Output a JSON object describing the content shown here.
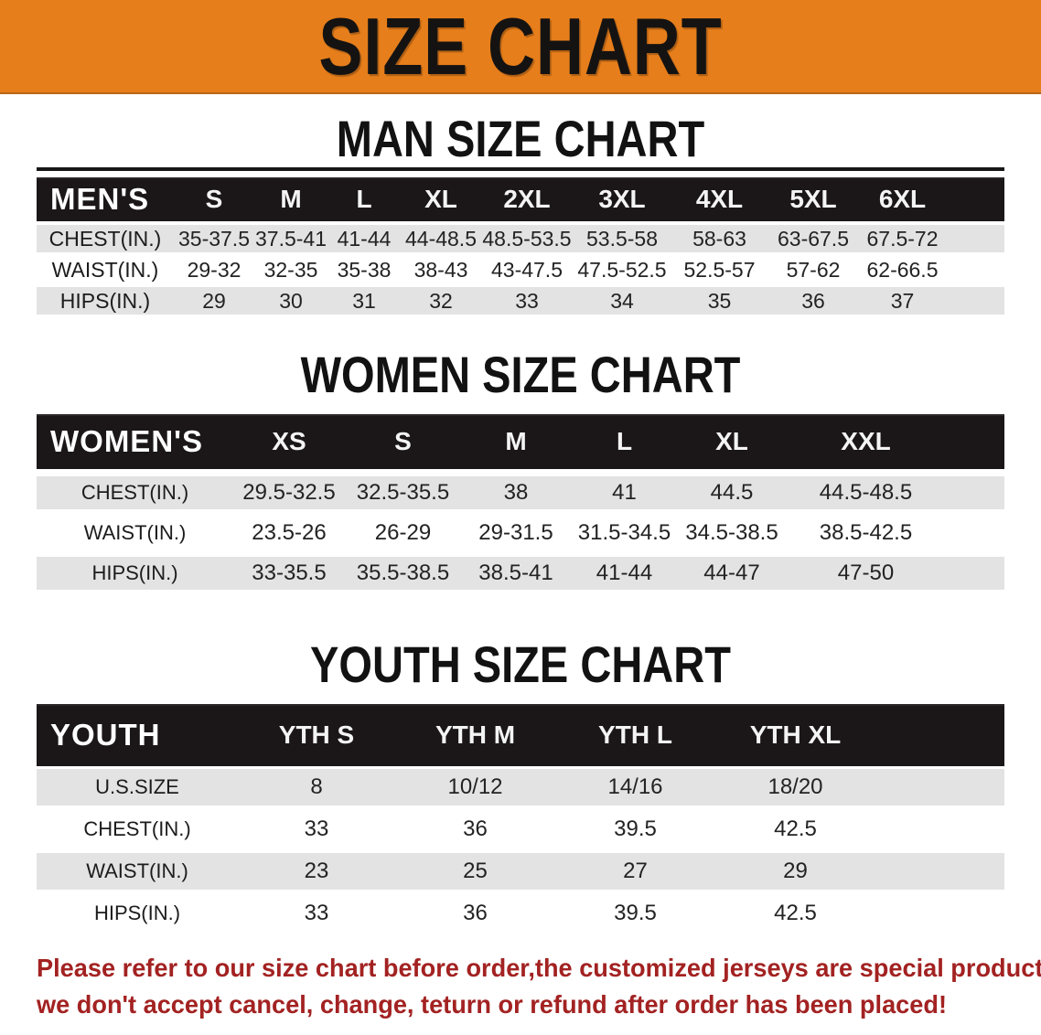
{
  "banner": {
    "title": "SIZE CHART"
  },
  "colors": {
    "banner-bg": "#e67e1b",
    "bar-bg": "#1b1718",
    "row-gray": "#e3e3e3",
    "warning-red": "#a32222"
  },
  "sections": [
    {
      "id": "men",
      "heading": "MAN SIZE CHART",
      "table": {
        "header": [
          "MEN'S",
          "S",
          "M",
          "L",
          "XL",
          "2XL",
          "3XL",
          "4XL",
          "5XL",
          "6XL"
        ],
        "rows": [
          {
            "label": "CHEST(IN.)",
            "values": [
              "35-37.5",
              "37.5-41",
              "41-44",
              "44-48.5",
              "48.5-53.5",
              "53.5-58",
              "58-63",
              "63-67.5",
              "67.5-72"
            ]
          },
          {
            "label": "WAIST(IN.)",
            "values": [
              "29-32",
              "32-35",
              "35-38",
              "38-43",
              "43-47.5",
              "47.5-52.5",
              "52.5-57",
              "57-62",
              "62-66.5"
            ]
          },
          {
            "label": "HIPS(IN.)",
            "values": [
              "29",
              "30",
              "31",
              "32",
              "33",
              "34",
              "35",
              "36",
              "37"
            ]
          }
        ]
      }
    },
    {
      "id": "women",
      "heading": "WOMEN SIZE CHART",
      "table": {
        "header": [
          "WOMEN'S",
          "XS",
          "S",
          "M",
          "L",
          "XL",
          "XXL"
        ],
        "rows": [
          {
            "label": "CHEST(IN.)",
            "values": [
              "29.5-32.5",
              "32.5-35.5",
              "38",
              "41",
              "44.5",
              "44.5-48.5"
            ]
          },
          {
            "label": "WAIST(IN.)",
            "values": [
              "23.5-26",
              "26-29",
              "29-31.5",
              "31.5-34.5",
              "34.5-38.5",
              "38.5-42.5"
            ]
          },
          {
            "label": "HIPS(IN.)",
            "values": [
              "33-35.5",
              "35.5-38.5",
              "38.5-41",
              "41-44",
              "44-47",
              "47-50"
            ]
          }
        ]
      }
    },
    {
      "id": "youth",
      "heading": "YOUTH SIZE CHART",
      "table": {
        "header": [
          "YOUTH",
          "YTH S",
          "YTH M",
          "YTH L",
          "YTH XL"
        ],
        "rows": [
          {
            "label": "U.S.SIZE",
            "values": [
              "8",
              "10/12",
              "14/16",
              "18/20"
            ]
          },
          {
            "label": "CHEST(IN.)",
            "values": [
              "33",
              "36",
              "39.5",
              "42.5"
            ]
          },
          {
            "label": "WAIST(IN.)",
            "values": [
              "23",
              "25",
              "27",
              "29"
            ]
          },
          {
            "label": "HIPS(IN.)",
            "values": [
              "33",
              "36",
              "39.5",
              "42.5"
            ]
          }
        ]
      }
    }
  ],
  "footer": {
    "line1": "Please refer to our size chart before order,the customized jerseys are special products,",
    "line2": "we don't accept cancel, change, teturn or refund after order has been placed!"
  }
}
